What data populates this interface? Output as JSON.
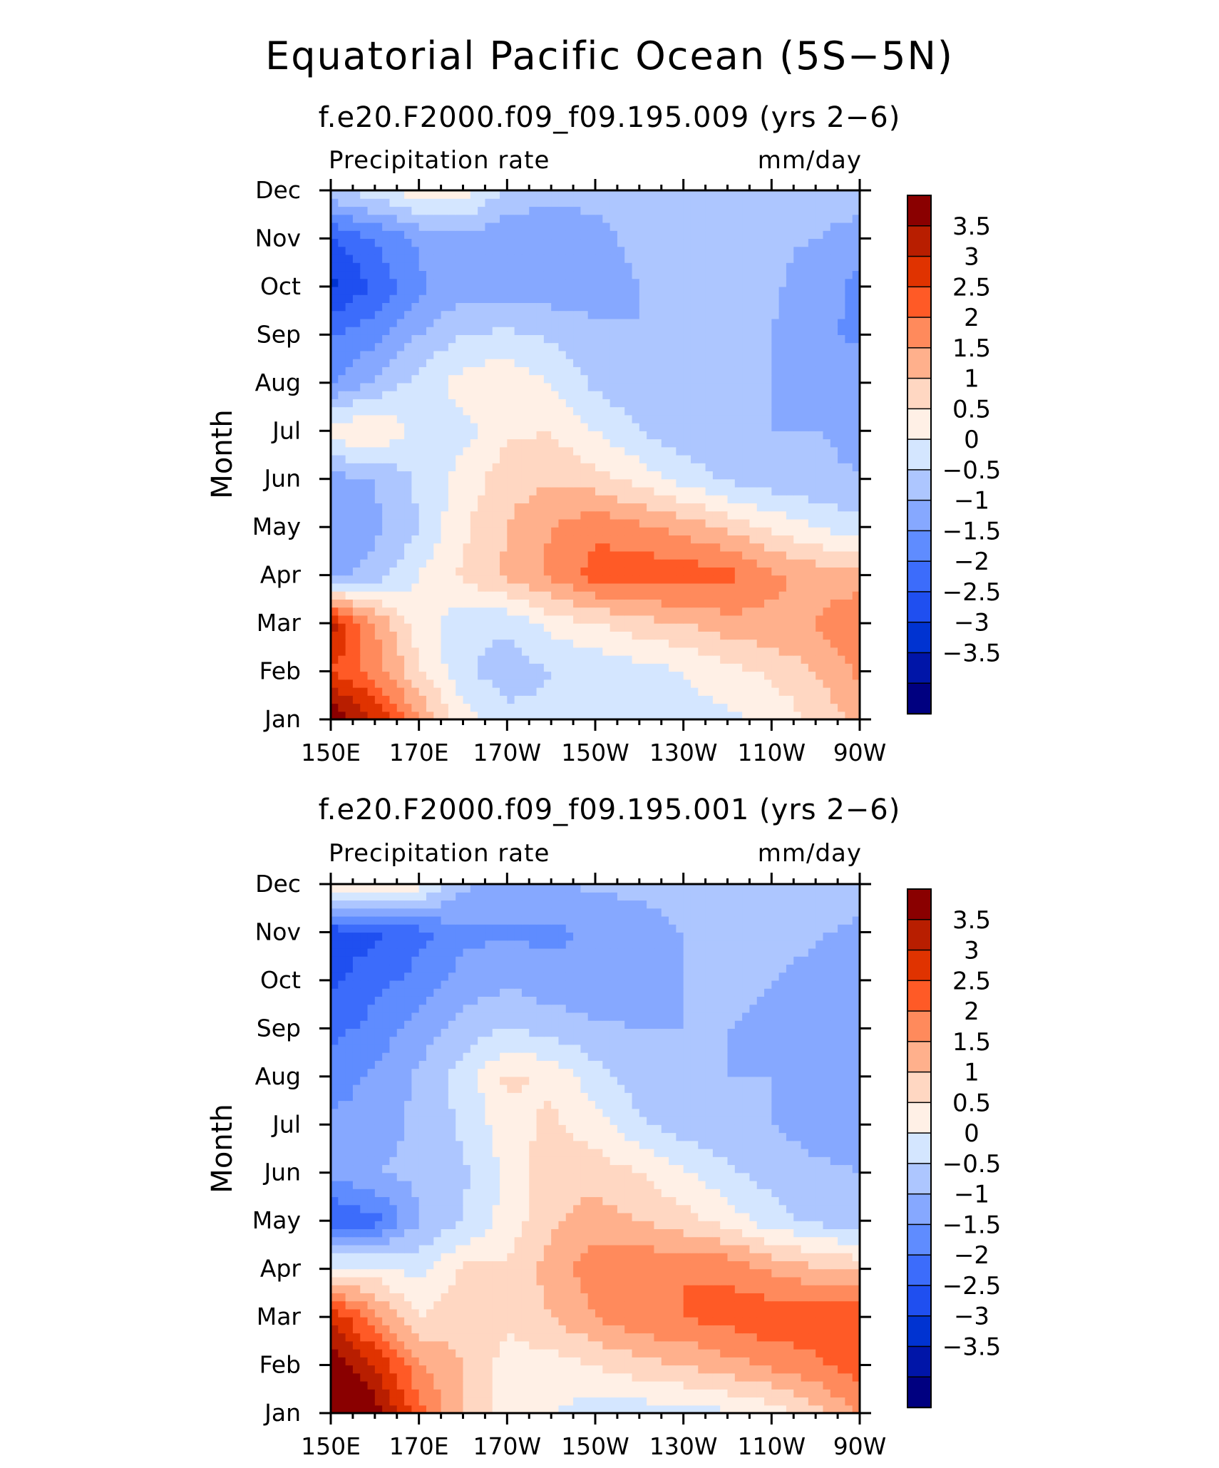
{
  "figure": {
    "title": "Equatorial Pacific Ocean (5S−5N)",
    "colors": {
      "levels": [
        "#000080",
        "#0015a8",
        "#0033d1",
        "#1f4ff0",
        "#3c6cfb",
        "#5f8cff",
        "#86a8ff",
        "#adc6ff",
        "#d4e6ff",
        "#fff0e6",
        "#ffd7c2",
        "#ffb08c",
        "#ff8a5c",
        "#ff5a26",
        "#e03300",
        "#b81e00",
        "#8a0000"
      ],
      "axis": "#000000"
    }
  },
  "chart_data": [
    {
      "type": "heatmap",
      "title": "f.e20.F2000.f09_f09.195.009 (yrs 2−6)",
      "left_label": "Precipitation rate",
      "right_label": "mm/day",
      "xlabel": "",
      "ylabel": "Month",
      "x_ticks": [
        "150E",
        "170E",
        "170W",
        "150W",
        "130W",
        "110W",
        "90W"
      ],
      "x": [
        150,
        160,
        170,
        180,
        190,
        200,
        210,
        220,
        230,
        240,
        250,
        260,
        270
      ],
      "y_ticks": [
        "Jan",
        "Feb",
        "Mar",
        "Apr",
        "May",
        "Jun",
        "Jul",
        "Aug",
        "Sep",
        "Oct",
        "Nov",
        "Dec"
      ],
      "colorbar": {
        "levels": [
          -3.5,
          -3,
          -2.5,
          -2,
          -1.5,
          -1,
          -0.5,
          0,
          0.5,
          1,
          1.5,
          2,
          2.5,
          3,
          3.5
        ],
        "labels": [
          "3.5",
          "3",
          "2.5",
          "2",
          "1.5",
          "1",
          "0.5",
          "0",
          "−0.5",
          "−1",
          "−1.5",
          "−2",
          "−2.5",
          "−3",
          "−3.5"
        ]
      },
      "z": [
        [
          4.0,
          3.0,
          1.5,
          0.2,
          -0.3,
          -0.4,
          -0.2,
          -0.3,
          -0.2,
          -0.1,
          0.1,
          0.6,
          1.2
        ],
        [
          2.5,
          1.8,
          0.6,
          -0.4,
          -0.8,
          -0.5,
          -0.4,
          -0.2,
          0.0,
          0.3,
          0.6,
          1.0,
          1.6
        ],
        [
          3.2,
          1.5,
          0.2,
          -0.3,
          -0.4,
          0.2,
          0.5,
          0.8,
          1.0,
          1.3,
          1.4,
          1.5,
          2.0
        ],
        [
          -1.2,
          -0.8,
          0.0,
          0.6,
          1.1,
          1.6,
          2.2,
          2.4,
          2.3,
          2.2,
          1.6,
          1.3,
          1.2
        ],
        [
          -1.4,
          -1.1,
          -0.5,
          0.4,
          1.0,
          1.5,
          1.9,
          1.6,
          1.3,
          0.9,
          0.4,
          0.0,
          -0.3
        ],
        [
          -1.2,
          -1.0,
          -0.4,
          0.2,
          0.8,
          0.9,
          0.7,
          0.3,
          -0.2,
          -0.6,
          -0.8,
          -0.9,
          -1.0
        ],
        [
          0.3,
          0.6,
          -0.3,
          -0.2,
          0.4,
          0.5,
          0.0,
          -0.5,
          -0.8,
          -0.9,
          -1.0,
          -1.0,
          -1.1
        ],
        [
          -1.6,
          -0.9,
          -0.3,
          0.2,
          0.4,
          0.0,
          -0.6,
          -0.9,
          -1.0,
          -1.0,
          -1.0,
          -1.1,
          -1.2
        ],
        [
          -2.0,
          -1.7,
          -1.0,
          -0.5,
          -0.4,
          -0.6,
          -0.9,
          -1.0,
          -1.0,
          -1.0,
          -1.0,
          -1.4,
          -1.6
        ],
        [
          -3.1,
          -2.4,
          -1.6,
          -1.2,
          -1.2,
          -1.3,
          -1.2,
          -1.0,
          -0.9,
          -0.8,
          -0.9,
          -1.3,
          -1.6
        ],
        [
          -2.6,
          -2.0,
          -1.4,
          -1.1,
          -1.4,
          -1.4,
          -1.1,
          -0.9,
          -0.9,
          -0.8,
          -0.9,
          -1.0,
          -1.4
        ],
        [
          -0.6,
          -0.2,
          0.3,
          0.2,
          -0.6,
          -0.8,
          -0.9,
          -0.8,
          -0.8,
          -0.8,
          -0.8,
          -0.5,
          -0.6
        ]
      ]
    },
    {
      "type": "heatmap",
      "title": "f.e20.F2000.f09_f09.195.001 (yrs 2−6)",
      "left_label": "Precipitation rate",
      "right_label": "mm/day",
      "xlabel": "",
      "ylabel": "Month",
      "x_ticks": [
        "150E",
        "170E",
        "170W",
        "150W",
        "130W",
        "110W",
        "90W"
      ],
      "x": [
        150,
        160,
        170,
        180,
        190,
        200,
        210,
        220,
        230,
        240,
        250,
        260,
        270
      ],
      "y_ticks": [
        "Jan",
        "Feb",
        "Mar",
        "Apr",
        "May",
        "Jun",
        "Jul",
        "Aug",
        "Sep",
        "Oct",
        "Nov",
        "Dec"
      ],
      "colorbar": {
        "levels": [
          -3.5,
          -3,
          -2.5,
          -2,
          -1.5,
          -1,
          -0.5,
          0,
          0.5,
          1,
          1.5,
          2,
          2.5,
          3,
          3.5
        ],
        "labels": [
          "3.5",
          "3",
          "2.5",
          "2",
          "1.5",
          "1",
          "0.5",
          "0",
          "−0.5",
          "−1",
          "−1.5",
          "−2",
          "−2.5",
          "−3",
          "−3.5"
        ]
      },
      "z": [
        [
          4.0,
          3.8,
          2.2,
          1.0,
          0.3,
          0.0,
          -0.3,
          -0.3,
          -0.2,
          -0.1,
          0.2,
          0.8,
          1.6
        ],
        [
          4.0,
          3.0,
          1.6,
          1.0,
          0.3,
          0.3,
          0.5,
          0.8,
          1.0,
          1.3,
          1.6,
          1.9,
          2.2
        ],
        [
          3.0,
          1.6,
          0.5,
          0.8,
          0.6,
          1.0,
          1.5,
          1.9,
          2.0,
          2.2,
          2.4,
          2.3,
          2.4
        ],
        [
          0.2,
          0.2,
          -0.2,
          0.6,
          0.6,
          1.2,
          1.8,
          1.9,
          2.0,
          1.9,
          1.4,
          1.1,
          0.9
        ],
        [
          -2.6,
          -2.2,
          -1.0,
          -0.5,
          0.2,
          0.9,
          1.2,
          1.0,
          0.7,
          0.3,
          -0.3,
          -0.6,
          -0.8
        ],
        [
          -1.4,
          -1.0,
          -0.9,
          -0.6,
          0.1,
          0.9,
          0.8,
          0.5,
          0.1,
          -0.4,
          -0.7,
          -0.9,
          -1.0
        ],
        [
          -1.4,
          -1.2,
          -0.9,
          -0.4,
          0.3,
          0.6,
          0.2,
          -0.4,
          -0.8,
          -0.9,
          -1.0,
          -1.2,
          -1.3
        ],
        [
          -1.8,
          -1.4,
          -0.9,
          -0.3,
          0.6,
          0.4,
          -0.3,
          -0.8,
          -1.0,
          -1.0,
          -1.0,
          -1.3,
          -1.4
        ],
        [
          -2.2,
          -1.8,
          -1.3,
          -0.8,
          -0.5,
          -0.7,
          -0.9,
          -1.0,
          -1.0,
          -1.0,
          -1.1,
          -1.4,
          -1.5
        ],
        [
          -2.6,
          -2.2,
          -1.8,
          -1.3,
          -1.1,
          -1.3,
          -1.5,
          -1.2,
          -1.0,
          -0.9,
          -1.0,
          -1.2,
          -1.5
        ],
        [
          -2.8,
          -2.6,
          -2.2,
          -1.6,
          -1.6,
          -1.6,
          -1.4,
          -1.2,
          -1.0,
          -0.9,
          -0.8,
          -0.9,
          -1.2
        ],
        [
          0.6,
          0.4,
          0.2,
          -0.9,
          -1.2,
          -1.1,
          -0.9,
          -0.9,
          -0.8,
          -0.8,
          -0.7,
          -0.5,
          -0.6
        ]
      ]
    }
  ]
}
